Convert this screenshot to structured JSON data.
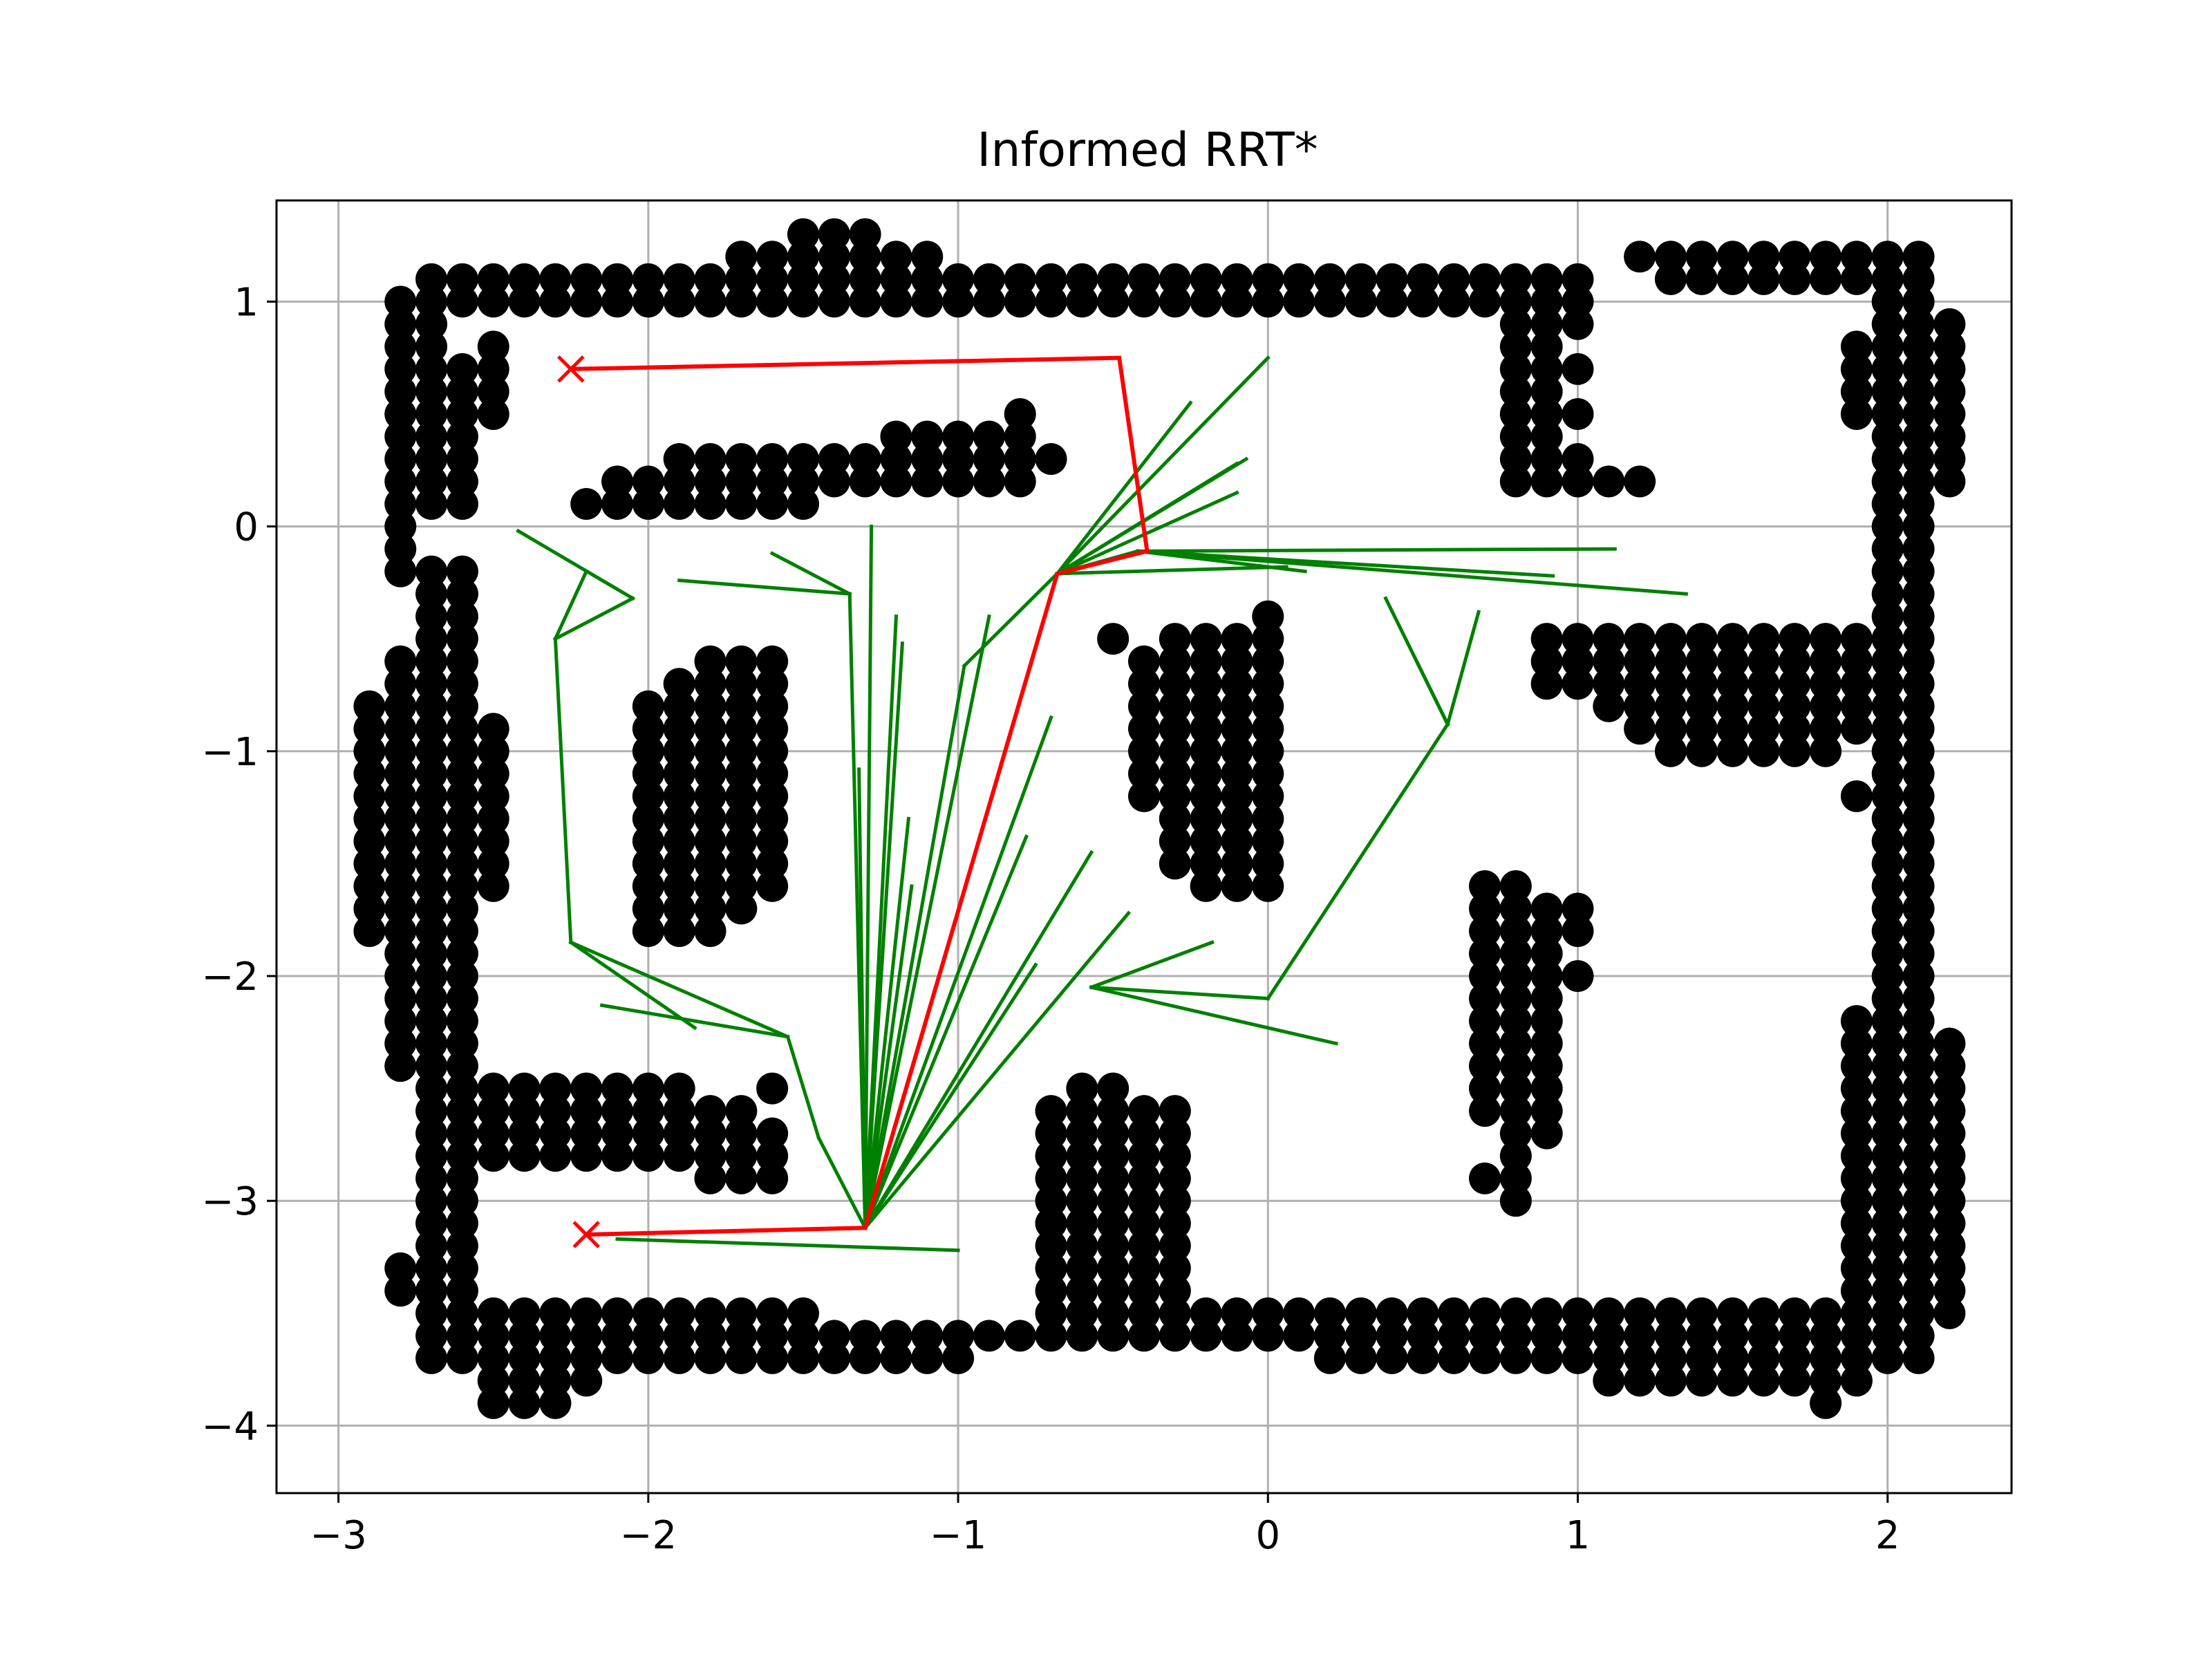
{
  "chart_data": {
    "type": "scatter",
    "title": "Informed RRT*",
    "xlabel": "",
    "ylabel": "",
    "xlim": [
      -3.2,
      2.4
    ],
    "ylim": [
      -4.3,
      1.45
    ],
    "xticks": [
      -3,
      -2,
      -1,
      0,
      1,
      2
    ],
    "xtick_labels": [
      "−3",
      "−2",
      "−1",
      "0",
      "1",
      "2"
    ],
    "yticks": [
      -4,
      -3,
      -2,
      -1,
      0,
      1
    ],
    "ytick_labels": [
      "−4",
      "−3",
      "−2",
      "−1",
      "0",
      "1"
    ],
    "grid": true,
    "colors": {
      "obstacles": "#000000",
      "tree": "#008000",
      "path": "#ff0000",
      "grid": "#b0b0b0"
    },
    "start": [
      -2.2,
      -3.15
    ],
    "goal": [
      -2.25,
      0.7
    ],
    "obstacle_segments": [
      {
        "from": [
          -2.7,
          1.0
        ],
        "to": [
          1.0,
          1.0
        ]
      },
      {
        "from": [
          -2.7,
          1.1
        ],
        "to": [
          1.0,
          1.1
        ]
      },
      {
        "from": [
          -1.7,
          1.2
        ],
        "to": [
          -1.3,
          1.2
        ]
      },
      {
        "from": [
          -1.5,
          1.3
        ],
        "to": [
          -1.3,
          1.3
        ]
      },
      {
        "from": [
          1.2,
          1.2
        ],
        "to": [
          2.1,
          1.2
        ]
      },
      {
        "from": [
          1.3,
          1.1
        ],
        "to": [
          2.1,
          1.1
        ]
      },
      {
        "from": [
          0.8,
          1.1
        ],
        "to": [
          0.8,
          0.2
        ]
      },
      {
        "from": [
          0.9,
          1.1
        ],
        "to": [
          0.9,
          0.2
        ]
      },
      {
        "from": [
          1.0,
          0.2
        ],
        "to": [
          1.2,
          0.2
        ]
      },
      {
        "from": [
          2.0,
          1.1
        ],
        "to": [
          2.0,
          -3.7
        ]
      },
      {
        "from": [
          2.1,
          1.1
        ],
        "to": [
          2.1,
          -3.7
        ]
      },
      {
        "from": [
          2.2,
          0.9
        ],
        "to": [
          2.2,
          0.2
        ]
      },
      {
        "from": [
          1.9,
          0.8
        ],
        "to": [
          1.9,
          0.5
        ]
      },
      {
        "from": [
          1.9,
          -2.2
        ],
        "to": [
          1.9,
          -3.7
        ]
      },
      {
        "from": [
          2.2,
          -2.3
        ],
        "to": [
          2.2,
          -3.5
        ]
      },
      {
        "from": [
          -2.8,
          1.0
        ],
        "to": [
          -2.8,
          -0.2
        ]
      },
      {
        "from": [
          -2.7,
          0.9
        ],
        "to": [
          -2.7,
          0.1
        ]
      },
      {
        "from": [
          -2.6,
          0.7
        ],
        "to": [
          -2.6,
          0.1
        ]
      },
      {
        "from": [
          -2.5,
          0.8
        ],
        "to": [
          -2.5,
          0.5
        ]
      },
      {
        "from": [
          -2.7,
          -0.2
        ],
        "to": [
          -2.7,
          -3.7
        ]
      },
      {
        "from": [
          -2.6,
          -0.2
        ],
        "to": [
          -2.6,
          -3.7
        ]
      },
      {
        "from": [
          -2.8,
          -0.6
        ],
        "to": [
          -2.8,
          -2.4
        ]
      },
      {
        "from": [
          -2.9,
          -0.8
        ],
        "to": [
          -2.9,
          -1.8
        ]
      },
      {
        "from": [
          -2.5,
          -0.9
        ],
        "to": [
          -2.5,
          -1.6
        ]
      },
      {
        "from": [
          -2.8,
          -3.3
        ],
        "to": [
          -2.8,
          -3.4
        ]
      },
      {
        "from": [
          -2.6,
          -3.6
        ],
        "to": [
          -0.8,
          -3.6
        ]
      },
      {
        "from": [
          -2.6,
          -3.5
        ],
        "to": [
          -1.5,
          -3.5
        ]
      },
      {
        "from": [
          -2.6,
          -3.7
        ],
        "to": [
          -1.0,
          -3.7
        ]
      },
      {
        "from": [
          -2.5,
          -3.8
        ],
        "to": [
          -2.3,
          -3.8
        ]
      },
      {
        "from": [
          -2.5,
          -3.9
        ],
        "to": [
          -2.3,
          -3.9
        ]
      },
      {
        "from": [
          -0.8,
          -3.6
        ],
        "to": [
          2.0,
          -3.6
        ]
      },
      {
        "from": [
          -0.2,
          -3.5
        ],
        "to": [
          1.8,
          -3.5
        ]
      },
      {
        "from": [
          0.2,
          -3.7
        ],
        "to": [
          1.8,
          -3.7
        ]
      },
      {
        "from": [
          1.1,
          -3.8
        ],
        "to": [
          1.9,
          -3.8
        ]
      },
      {
        "from": [
          -0.7,
          -2.6
        ],
        "to": [
          -0.7,
          -3.6
        ]
      },
      {
        "from": [
          -0.6,
          -2.5
        ],
        "to": [
          -0.6,
          -3.6
        ]
      },
      {
        "from": [
          -0.5,
          -2.5
        ],
        "to": [
          -0.5,
          -3.6
        ]
      },
      {
        "from": [
          -0.4,
          -2.6
        ],
        "to": [
          -0.4,
          -3.6
        ]
      },
      {
        "from": [
          -0.3,
          -2.6
        ],
        "to": [
          -0.3,
          -3.6
        ]
      },
      {
        "from": [
          -2.5,
          -2.5
        ],
        "to": [
          -1.9,
          -2.5
        ]
      },
      {
        "from": [
          -2.5,
          -2.6
        ],
        "to": [
          -1.7,
          -2.6
        ]
      },
      {
        "from": [
          -2.5,
          -2.7
        ],
        "to": [
          -1.6,
          -2.7
        ]
      },
      {
        "from": [
          -2.5,
          -2.8
        ],
        "to": [
          -1.6,
          -2.8
        ]
      },
      {
        "from": [
          -1.8,
          -2.9
        ],
        "to": [
          -1.6,
          -2.9
        ]
      },
      {
        "from": [
          -2.2,
          0.1
        ],
        "to": [
          -1.5,
          0.1
        ]
      },
      {
        "from": [
          -2.1,
          0.2
        ],
        "to": [
          -0.8,
          0.2
        ]
      },
      {
        "from": [
          -1.9,
          0.3
        ],
        "to": [
          -0.7,
          0.3
        ]
      },
      {
        "from": [
          -1.2,
          0.4
        ],
        "to": [
          -0.8,
          0.4
        ]
      },
      {
        "from": [
          -2.0,
          -0.8
        ],
        "to": [
          -2.0,
          -1.8
        ]
      },
      {
        "from": [
          -1.9,
          -0.7
        ],
        "to": [
          -1.9,
          -1.8
        ]
      },
      {
        "from": [
          -1.8,
          -0.6
        ],
        "to": [
          -1.8,
          -1.8
        ]
      },
      {
        "from": [
          -1.7,
          -0.6
        ],
        "to": [
          -1.7,
          -1.7
        ]
      },
      {
        "from": [
          -1.6,
          -0.6
        ],
        "to": [
          -1.6,
          -1.6
        ]
      },
      {
        "from": [
          -0.4,
          -0.6
        ],
        "to": [
          -0.4,
          -1.2
        ]
      },
      {
        "from": [
          -0.3,
          -0.5
        ],
        "to": [
          -0.3,
          -1.5
        ]
      },
      {
        "from": [
          -0.2,
          -0.5
        ],
        "to": [
          -0.2,
          -1.6
        ]
      },
      {
        "from": [
          -0.1,
          -0.5
        ],
        "to": [
          -0.1,
          -1.6
        ]
      },
      {
        "from": [
          0.0,
          -0.4
        ],
        "to": [
          0.0,
          -1.6
        ]
      },
      {
        "from": [
          0.9,
          -0.5
        ],
        "to": [
          2.0,
          -0.5
        ]
      },
      {
        "from": [
          0.9,
          -0.6
        ],
        "to": [
          2.0,
          -0.6
        ]
      },
      {
        "from": [
          1.0,
          -0.7
        ],
        "to": [
          2.0,
          -0.7
        ]
      },
      {
        "from": [
          1.1,
          -0.8
        ],
        "to": [
          2.0,
          -0.8
        ]
      },
      {
        "from": [
          1.2,
          -0.9
        ],
        "to": [
          2.0,
          -0.9
        ]
      },
      {
        "from": [
          1.3,
          -1.0
        ],
        "to": [
          1.8,
          -1.0
        ]
      },
      {
        "from": [
          0.7,
          -1.6
        ],
        "to": [
          0.7,
          -2.6
        ]
      },
      {
        "from": [
          0.8,
          -1.6
        ],
        "to": [
          0.8,
          -2.8
        ]
      },
      {
        "from": [
          0.9,
          -1.7
        ],
        "to": [
          0.9,
          -2.7
        ]
      },
      {
        "from": [
          0.8,
          -2.8
        ],
        "to": [
          0.8,
          -3.0
        ]
      }
    ],
    "obstacle_points": [
      [
        -1.5,
        1.3
      ],
      [
        -1.4,
        1.3
      ],
      [
        -1.3,
        1.3
      ],
      [
        -1.2,
        1.2
      ],
      [
        -1.1,
        1.2
      ],
      [
        -1.2,
        1.0
      ],
      [
        -1.0,
        1.0
      ],
      [
        -0.5,
        1.0
      ],
      [
        -0.3,
        1.0
      ],
      [
        -0.2,
        1.1
      ],
      [
        1.0,
        0.9
      ],
      [
        1.0,
        0.7
      ],
      [
        1.0,
        0.5
      ],
      [
        1.0,
        0.3
      ],
      [
        1.1,
        0.2
      ],
      [
        -1.2,
        0.4
      ],
      [
        -1.1,
        0.4
      ],
      [
        -0.9,
        0.4
      ],
      [
        -0.8,
        0.5
      ],
      [
        -0.7,
        0.3
      ],
      [
        -0.5,
        -0.5
      ],
      [
        0.9,
        -0.5
      ],
      [
        0.9,
        -0.7
      ],
      [
        1.0,
        -0.5
      ],
      [
        1.9,
        -1.2
      ],
      [
        1.0,
        -1.7
      ],
      [
        1.0,
        -1.8
      ],
      [
        1.0,
        -2.0
      ],
      [
        0.7,
        -2.9
      ],
      [
        0.8,
        -3.0
      ],
      [
        -2.5,
        -1.6
      ],
      [
        -2.5,
        -1.4
      ],
      [
        -2.8,
        -3.3
      ],
      [
        -2.8,
        -3.4
      ],
      [
        -2.0,
        -1.8
      ],
      [
        -1.9,
        -1.8
      ],
      [
        -1.8,
        -1.8
      ],
      [
        -1.6,
        -2.5
      ],
      [
        -1.7,
        -2.9
      ],
      [
        -2.2,
        -3.8
      ],
      [
        -2.3,
        -3.9
      ],
      [
        1.8,
        -3.9
      ],
      [
        1.9,
        -3.8
      ]
    ],
    "tree_edges": [
      [
        [
          -2.2,
          -3.15
        ],
        [
          -1.3,
          -3.12
        ]
      ],
      [
        [
          -2.1,
          -3.17
        ],
        [
          -1.0,
          -3.22
        ]
      ],
      [
        [
          -1.3,
          -3.12
        ],
        [
          -1.28,
          0.0
        ]
      ],
      [
        [
          -1.3,
          -3.12
        ],
        [
          -1.35,
          -0.3
        ]
      ],
      [
        [
          -1.3,
          -3.12
        ],
        [
          -1.32,
          -1.08
        ]
      ],
      [
        [
          -1.3,
          -3.12
        ],
        [
          -1.2,
          -0.4
        ]
      ],
      [
        [
          -1.3,
          -3.12
        ],
        [
          -1.18,
          -0.52
        ]
      ],
      [
        [
          -1.3,
          -3.12
        ],
        [
          -1.16,
          -1.3
        ]
      ],
      [
        [
          -1.3,
          -3.12
        ],
        [
          -1.15,
          -1.6
        ]
      ],
      [
        [
          -1.3,
          -3.12
        ],
        [
          -0.98,
          -0.62
        ]
      ],
      [
        [
          -1.3,
          -3.12
        ],
        [
          -0.9,
          -0.4
        ]
      ],
      [
        [
          -1.3,
          -3.12
        ],
        [
          -0.7,
          -0.85
        ]
      ],
      [
        [
          -1.3,
          -3.12
        ],
        [
          -0.78,
          -1.38
        ]
      ],
      [
        [
          -1.3,
          -3.12
        ],
        [
          -0.57,
          -1.45
        ]
      ],
      [
        [
          -1.3,
          -3.12
        ],
        [
          -0.75,
          -1.95
        ]
      ],
      [
        [
          -1.3,
          -3.12
        ],
        [
          -0.45,
          -1.72
        ]
      ],
      [
        [
          -1.3,
          -3.12
        ],
        [
          -1.45,
          -2.72
        ]
      ],
      [
        [
          -1.45,
          -2.72
        ],
        [
          -1.55,
          -2.27
        ]
      ],
      [
        [
          -1.55,
          -2.27
        ],
        [
          -2.15,
          -2.13
        ]
      ],
      [
        [
          -1.55,
          -2.27
        ],
        [
          -2.25,
          -1.85
        ]
      ],
      [
        [
          -2.25,
          -1.85
        ],
        [
          -1.85,
          -2.23
        ]
      ],
      [
        [
          -2.25,
          -1.85
        ],
        [
          -2.3,
          -0.5
        ]
      ],
      [
        [
          -2.3,
          -0.5
        ],
        [
          -2.05,
          -0.32
        ]
      ],
      [
        [
          -2.05,
          -0.32
        ],
        [
          -2.42,
          -0.02
        ]
      ],
      [
        [
          -2.3,
          -0.5
        ],
        [
          -2.2,
          -0.2
        ]
      ],
      [
        [
          -1.35,
          -0.3
        ],
        [
          -1.9,
          -0.24
        ]
      ],
      [
        [
          -1.35,
          -0.3
        ],
        [
          -1.6,
          -0.12
        ]
      ],
      [
        [
          -0.98,
          -0.62
        ],
        [
          -0.68,
          -0.21
        ]
      ],
      [
        [
          -0.68,
          -0.21
        ],
        [
          -0.42,
          -0.11
        ]
      ],
      [
        [
          -0.42,
          -0.11
        ],
        [
          1.12,
          -0.1
        ]
      ],
      [
        [
          -0.42,
          -0.11
        ],
        [
          1.35,
          -0.3
        ]
      ],
      [
        [
          -0.42,
          -0.11
        ],
        [
          0.92,
          -0.22
        ]
      ],
      [
        [
          -0.42,
          -0.11
        ],
        [
          0.12,
          -0.2
        ]
      ],
      [
        [
          -0.68,
          -0.21
        ],
        [
          0.0,
          0.75
        ]
      ],
      [
        [
          -0.68,
          -0.21
        ],
        [
          -0.25,
          0.55
        ]
      ],
      [
        [
          -0.68,
          -0.21
        ],
        [
          -0.07,
          0.3
        ]
      ],
      [
        [
          -0.68,
          -0.21
        ],
        [
          -0.1,
          0.28
        ]
      ],
      [
        [
          -0.68,
          -0.21
        ],
        [
          -0.1,
          0.15
        ]
      ],
      [
        [
          -0.68,
          -0.21
        ],
        [
          0.06,
          -0.18
        ]
      ],
      [
        [
          -0.57,
          -2.05
        ],
        [
          0.0,
          -2.1
        ]
      ],
      [
        [
          -0.57,
          -2.05
        ],
        [
          -0.18,
          -1.85
        ]
      ],
      [
        [
          -0.57,
          -2.05
        ],
        [
          0.22,
          -2.3
        ]
      ],
      [
        [
          0.0,
          -2.1
        ],
        [
          0.58,
          -0.88
        ]
      ],
      [
        [
          0.58,
          -0.88
        ],
        [
          0.38,
          -0.32
        ]
      ],
      [
        [
          0.58,
          -0.88
        ],
        [
          0.68,
          -0.38
        ]
      ],
      [
        [
          0.58,
          -0.88
        ],
        [
          0.48,
          -0.6
        ]
      ]
    ],
    "path": [
      [
        -2.2,
        -3.15
      ],
      [
        -1.3,
        -3.12
      ],
      [
        -0.68,
        -0.21
      ],
      [
        -0.39,
        -0.11
      ],
      [
        -0.48,
        0.75
      ],
      [
        -2.25,
        0.7
      ]
    ]
  }
}
